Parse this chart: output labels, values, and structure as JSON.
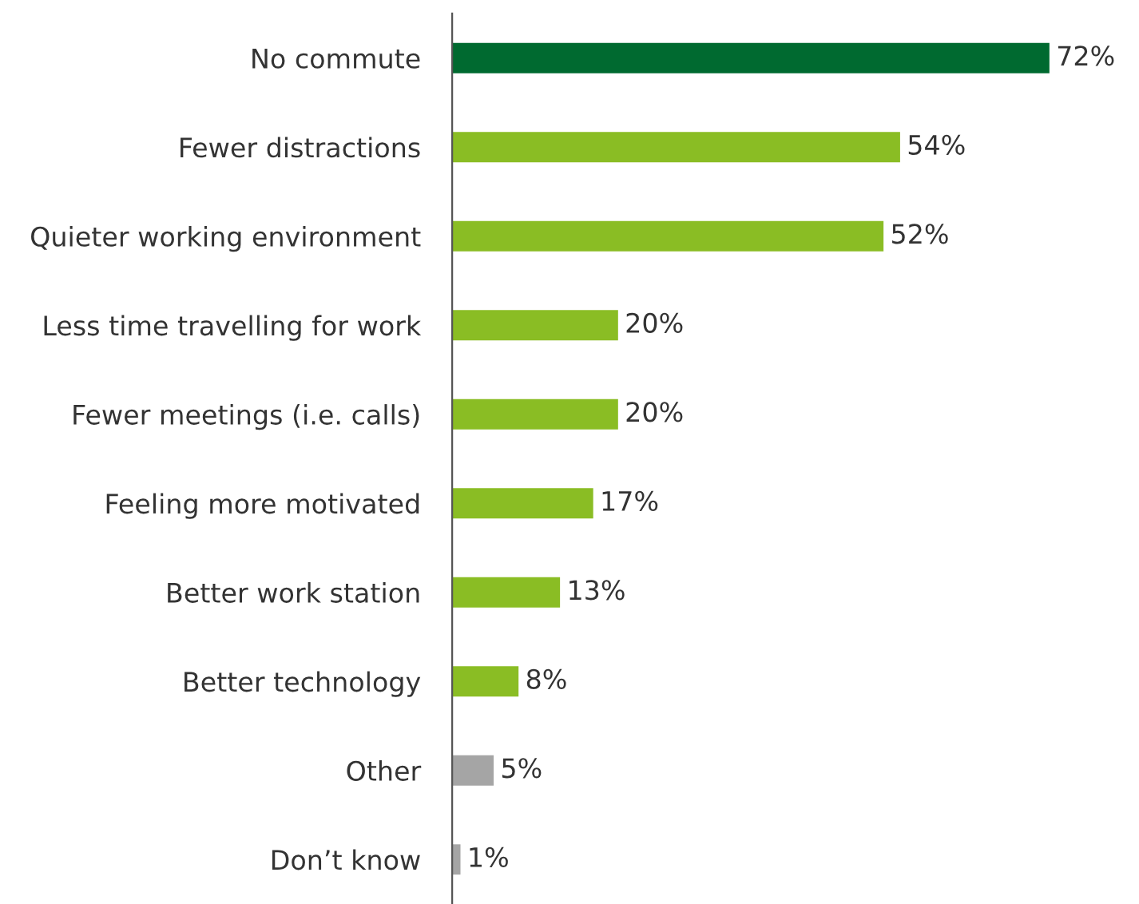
{
  "chart_data": {
    "type": "bar",
    "orientation": "horizontal",
    "categories": [
      "No commute",
      "Fewer distractions",
      "Quieter working environment",
      "Less time travelling for work",
      "Fewer meetings (i.e. calls)",
      "Feeling more motivated",
      "Better work station",
      "Better technology",
      "Other",
      "Don’t know"
    ],
    "values": [
      72,
      54,
      52,
      20,
      20,
      17,
      13,
      8,
      5,
      1
    ],
    "colors": [
      "#006a30",
      "#8abd24",
      "#8abd24",
      "#8abd24",
      "#8abd24",
      "#8abd24",
      "#8abd24",
      "#8abd24",
      "#a5a5a5",
      "#a5a5a5"
    ],
    "value_labels": [
      "72%",
      "54%",
      "52%",
      "20%",
      "20%",
      "17%",
      "13%",
      "8%",
      "5%",
      "1%"
    ],
    "grid": false,
    "legend": false
  }
}
